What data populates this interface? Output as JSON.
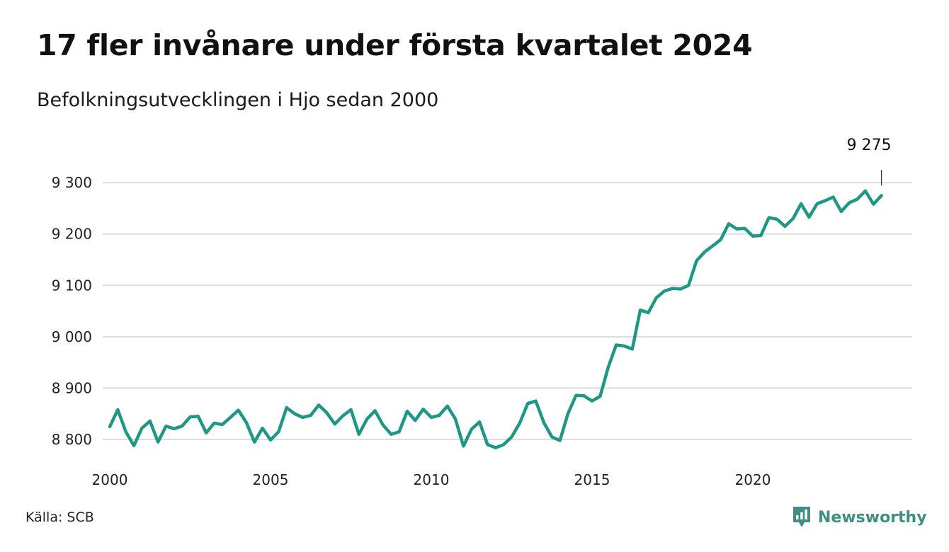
{
  "header": {
    "title": "17 fler invånare under första kvartalet 2024",
    "subtitle": "Befolkningsutvecklingen i Hjo sedan 2000"
  },
  "footer": {
    "source": "Källa: SCB",
    "brand": "Newsworthy",
    "brand_icon": "newsworthy-logo-icon"
  },
  "colors": {
    "line": "#1e9785",
    "grid": "#dedede",
    "brand": "#3f8f86"
  },
  "chart_data": {
    "type": "line",
    "title": "17 fler invånare under första kvartalet 2024",
    "subtitle": "Befolkningsutvecklingen i Hjo sedan 2000",
    "x_unit": "quarter",
    "x_start": "2000 Q1",
    "xticks": [
      2000,
      2005,
      2010,
      2015,
      2020
    ],
    "xtick_labels": [
      "2000",
      "2005",
      "2010",
      "2015",
      "2020"
    ],
    "yticks": [
      8800,
      8900,
      9000,
      9100,
      9200,
      9300
    ],
    "ytick_labels": [
      "8 800",
      "8 900",
      "9 000",
      "9 100",
      "9 200",
      "9 300"
    ],
    "ylim": [
      8780,
      9310
    ],
    "grid": true,
    "annotation": {
      "label": "9 275",
      "value": 9275,
      "period": "2024 Q1"
    },
    "series": [
      {
        "values": [
          8825,
          8858,
          8815,
          8788,
          8822,
          8836,
          8795,
          8826,
          8821,
          8826,
          8844,
          8845,
          8813,
          8832,
          8829,
          8843,
          8857,
          8833,
          8795,
          8822,
          8799,
          8815,
          8862,
          8850,
          8843,
          8847,
          8867,
          8852,
          8830,
          8846,
          8858,
          8810,
          8840,
          8856,
          8828,
          8810,
          8815,
          8855,
          8837,
          8859,
          8843,
          8847,
          8865,
          8840,
          8787,
          8820,
          8834,
          8790,
          8784,
          8790,
          8805,
          8832,
          8870,
          8875,
          8833,
          8805,
          8798,
          8850,
          8886,
          8885,
          8875,
          8884,
          8940,
          8984,
          8982,
          8976,
          9052,
          9047,
          9076,
          9089,
          9094,
          9093,
          9100,
          9148,
          9165,
          9177,
          9189,
          9220,
          9210,
          9211,
          9196,
          9197,
          9232,
          9229,
          9215,
          9230,
          9259,
          9233,
          9259,
          9265,
          9272,
          9244,
          9261,
          9268,
          9284,
          9258,
          9275
        ]
      }
    ]
  }
}
